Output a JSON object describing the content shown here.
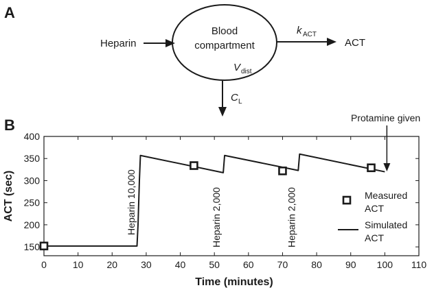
{
  "diagram": {
    "panel_label": "A",
    "input_label": "Heparin",
    "compartment_line1": "Blood",
    "compartment_line2": "compartment",
    "volume_symbol": "V",
    "volume_sub": "dist",
    "rate_symbol": "k",
    "rate_sub": "ACT",
    "output_label": "ACT",
    "clearance_symbol": "C",
    "clearance_sub": "L"
  },
  "chart_panel_label": "B",
  "chart_data": {
    "type": "line",
    "title": "",
    "xlabel": "Time (minutes)",
    "ylabel": "ACT (sec)",
    "xlim": [
      0,
      110
    ],
    "ylim": [
      130,
      400
    ],
    "xticks": [
      0,
      10,
      20,
      30,
      40,
      50,
      60,
      70,
      80,
      90,
      100,
      110
    ],
    "yticks": [
      150,
      200,
      250,
      300,
      350,
      400
    ],
    "grid": false,
    "legend_position": "right",
    "series": [
      {
        "name": "Simulated ACT",
        "kind": "line",
        "x": [
          0,
          27.3,
          27.6,
          28.0,
          28.3,
          52.6,
          53.0,
          74.6,
          75.0,
          100
        ],
        "y": [
          152,
          152,
          200,
          300,
          357,
          318,
          357,
          323,
          360,
          320
        ]
      },
      {
        "name": "Measured ACT",
        "kind": "marker",
        "x": [
          0,
          44,
          70,
          96
        ],
        "y": [
          152,
          334,
          322,
          329
        ]
      }
    ],
    "legend": [
      {
        "line1": "Measured",
        "line2": "ACT"
      },
      {
        "line1": "Simulated",
        "line2": "ACT"
      }
    ],
    "annotations": [
      {
        "text": "Heparin 10,000",
        "x": 27.6
      },
      {
        "text": "Heparin 2,000",
        "x": 52.6
      },
      {
        "text": "Heparin 2,000",
        "x": 74.6
      },
      {
        "text": "Protamine given",
        "x": 100
      }
    ]
  },
  "colors": {
    "ink": "#1a1a1a"
  }
}
